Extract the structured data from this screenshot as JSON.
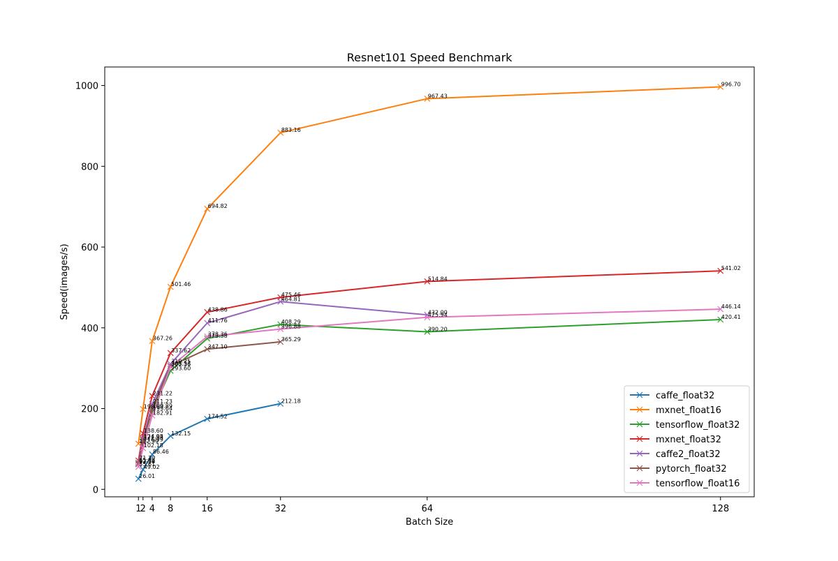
{
  "chart_data": {
    "type": "line",
    "title": "Resnet101 Speed Benchmark",
    "xlabel": "Batch Size",
    "ylabel": "Speed(images/s)",
    "xlim": [
      -6.35,
      135.35
    ],
    "ylim": [
      -18.53,
      1045.94
    ],
    "xticks": [
      1,
      2,
      4,
      8,
      16,
      32,
      64,
      128
    ],
    "yticks": [
      0,
      200,
      400,
      600,
      800,
      1000
    ],
    "grid": false,
    "legend_position": "lower right",
    "series": [
      {
        "name": "caffe_float32",
        "color": "#1f77b4",
        "x": [
          1,
          2,
          4,
          8,
          16,
          32
        ],
        "values": [
          26.01,
          49.02,
          86.46,
          132.15,
          174.52,
          212.18
        ],
        "labels": [
          "26.01",
          "49.02",
          "86.46",
          "132.15",
          "174.52",
          "212.18"
        ]
      },
      {
        "name": "mxnet_float16",
        "color": "#ff7f0e",
        "x": [
          1,
          2,
          4,
          8,
          16,
          32,
          64,
          128
        ],
        "values": [
          112.99,
          198.68,
          367.26,
          501.46,
          694.82,
          883.16,
          967.43,
          996.7
        ],
        "labels": [
          "112.99",
          "198.68",
          "367.26",
          "501.46",
          "694.82",
          "883.16",
          "967.43",
          "996.70"
        ]
      },
      {
        "name": "tensorflow_float32",
        "color": "#2ca02c",
        "x": [
          1,
          2,
          4,
          8,
          16,
          32,
          64,
          128
        ],
        "values": [
          63.54,
          121.93,
          193.64,
          293.6,
          373.38,
          408.29,
          390.2,
          420.41
        ],
        "labels": [
          "63.54",
          "121.93",
          "193.64",
          "293.60",
          "373.38",
          "408.29",
          "390.20",
          "420.41"
        ]
      },
      {
        "name": "mxnet_float32",
        "color": "#d62728",
        "x": [
          1,
          2,
          4,
          8,
          16,
          32,
          64,
          128
        ],
        "values": [
          71.3,
          138.6,
          231.22,
          337.62,
          438.86,
          475.46,
          514.84,
          541.02
        ],
        "labels": [
          "71.30",
          "138.60",
          "231.22",
          "337.62",
          "438.86",
          "475.46",
          "514.84",
          "541.02"
        ]
      },
      {
        "name": "caffe2_float32",
        "color": "#9467bd",
        "x": [
          1,
          2,
          4,
          8,
          16,
          32,
          64
        ],
        "values": [
          65.93,
          124.98,
          211.23,
          310.25,
          411.76,
          464.81,
          432.0
        ],
        "labels": [
          "65.93",
          "124.98",
          "211.23",
          "310.25",
          "411.76",
          "464.81",
          "432.00"
        ]
      },
      {
        "name": "pytorch_float32",
        "color": "#8c564b",
        "x": [
          1,
          2,
          4,
          8,
          16,
          32
        ],
        "values": [
          62.58,
          116.99,
          199.89,
          305.53,
          347.1,
          365.29
        ],
        "labels": [
          "62.58",
          "116.99",
          "199.89",
          "305.53",
          "347.10",
          "365.29"
        ]
      },
      {
        "name": "tensorflow_float16",
        "color": "#e377c2",
        "x": [
          1,
          2,
          4,
          8,
          16,
          32,
          64,
          128
        ],
        "values": [
          55.61,
          102.18,
          182.91,
          303.36,
          378.36,
          396.88,
          425.94,
          446.14
        ],
        "labels": [
          "55.61",
          "102.18",
          "182.91",
          "303.36",
          "378.36",
          "396.88",
          "425.94",
          "446.14"
        ]
      }
    ]
  }
}
